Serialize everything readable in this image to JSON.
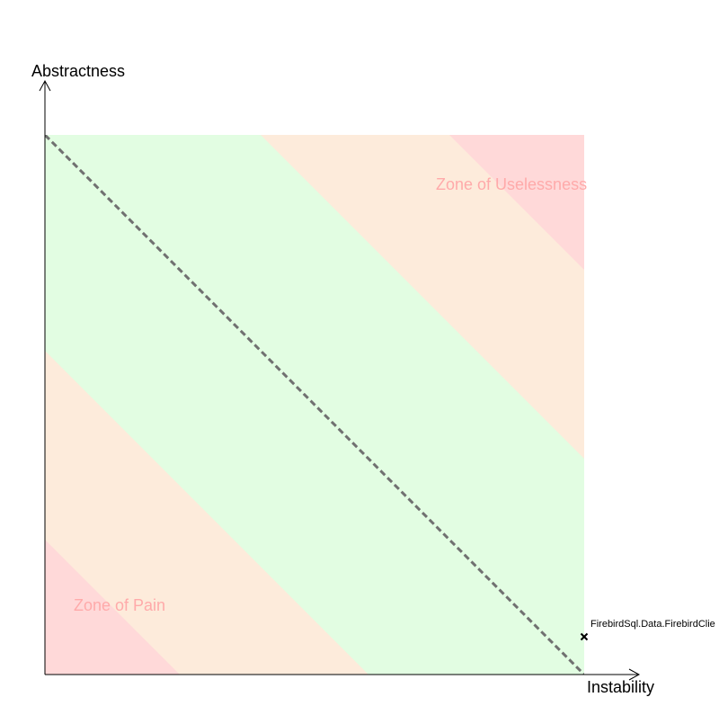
{
  "chart_data": {
    "type": "scatter",
    "title": "",
    "xlabel": "Instability",
    "ylabel": "Abstractness",
    "xlim": [
      0,
      1
    ],
    "ylim": [
      0,
      1
    ],
    "grid": false,
    "legend": "none",
    "main_sequence": {
      "from": [
        0,
        1
      ],
      "to": [
        1,
        0
      ],
      "style": "dashed",
      "color": "#707070"
    },
    "zones": [
      {
        "name": "pain",
        "label": "Zone of Pain",
        "distance_band": [
          0.75,
          1.0
        ],
        "color": "#ffd9d9",
        "label_color": "#ffaaaa"
      },
      {
        "name": "uselessness",
        "label": "Zone of Uselessness",
        "distance_band": [
          0.75,
          1.0
        ],
        "color": "#ffd9d9",
        "label_color": "#ffaaaa"
      },
      {
        "name": "warning",
        "distance_band": [
          0.4,
          0.75
        ],
        "color": "#fdebdb"
      },
      {
        "name": "safe",
        "distance_band": [
          0.0,
          0.4
        ],
        "color": "#e2fde2"
      }
    ],
    "points": [
      {
        "label": "FirebirdSql.Data.FirebirdClie",
        "x": 1.0,
        "y": 0.07,
        "marker": "x"
      }
    ]
  }
}
